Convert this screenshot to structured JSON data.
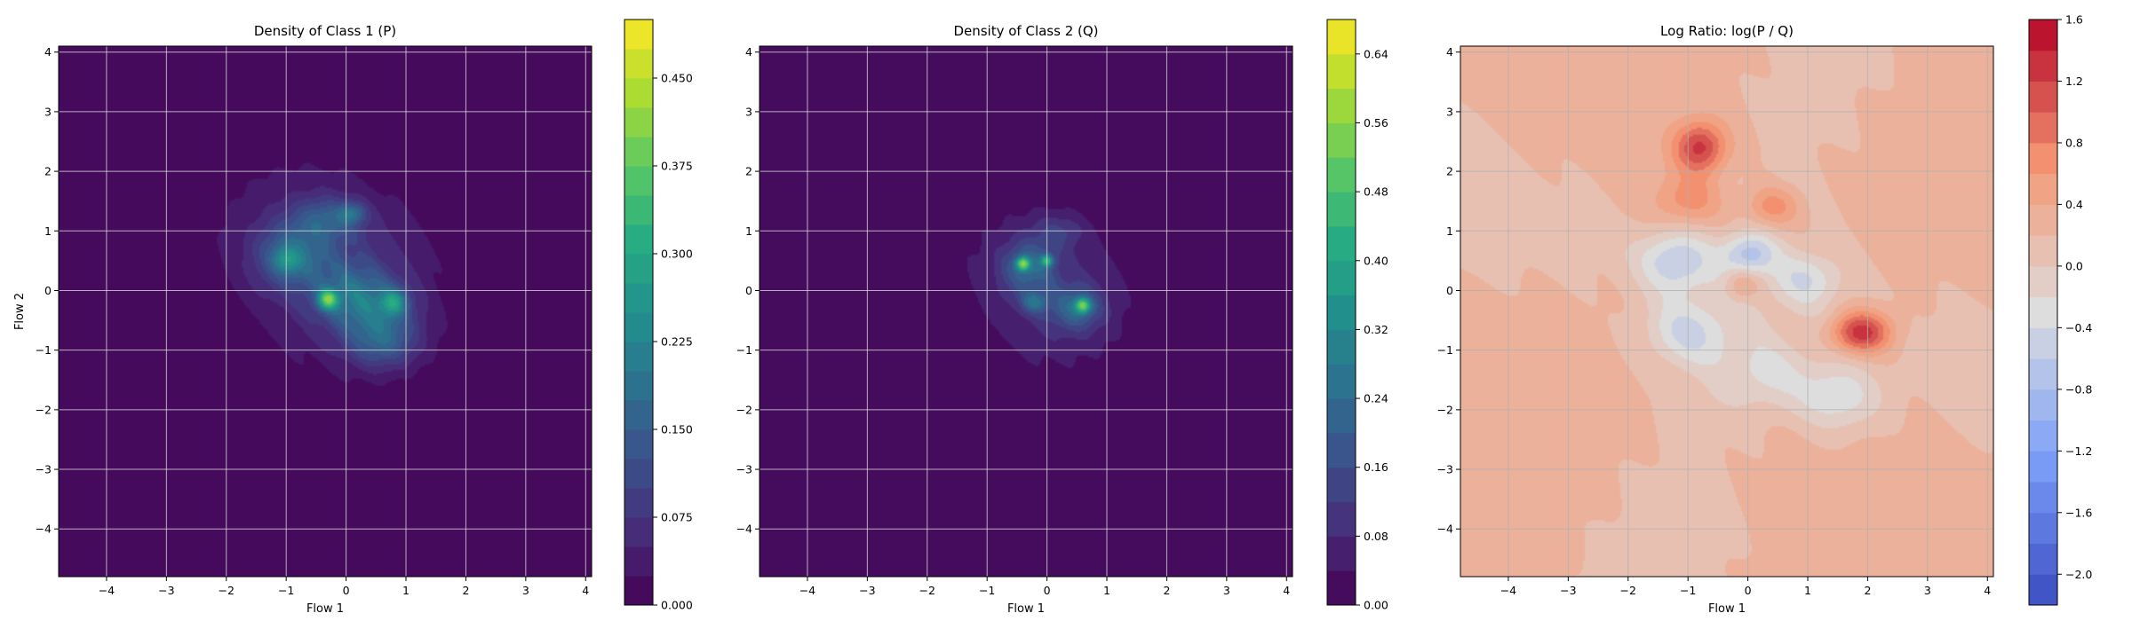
{
  "chart_data": [
    {
      "type": "heatmap",
      "title": "Density of Class 1 (P)",
      "xlabel": "Flow 1",
      "ylabel": "Flow 2",
      "xlim": [
        -4.8,
        4.1
      ],
      "ylim": [
        -4.8,
        4.1
      ],
      "xticks": [
        -4,
        -3,
        -2,
        -1,
        0,
        1,
        2,
        3,
        4
      ],
      "yticks": [
        4,
        3,
        2,
        1,
        0,
        -1,
        -2,
        -3,
        -4
      ],
      "colormap": "viridis",
      "colorbar": {
        "min": 0.0,
        "max": 0.5,
        "levels": 20,
        "ticks": [
          0.0,
          0.075,
          0.15,
          0.225,
          0.3,
          0.375,
          0.45
        ],
        "tick_labels": [
          "0.000",
          "0.075",
          "0.150",
          "0.225",
          "0.300",
          "0.375",
          "0.450"
        ]
      },
      "grid": true,
      "blobs": [
        {
          "x": -0.3,
          "y": 0.4,
          "sx": 1.25,
          "sy": 1.0,
          "rot": -0.65,
          "amp": 0.08
        },
        {
          "x": 0.3,
          "y": -0.2,
          "sx": 0.55,
          "sy": 0.4,
          "rot": -0.4,
          "amp": 0.15
        },
        {
          "x": -0.9,
          "y": 0.6,
          "sx": 0.4,
          "sy": 0.35,
          "rot": 0,
          "amp": 0.12
        },
        {
          "x": -0.3,
          "y": 1.2,
          "sx": 0.4,
          "sy": 0.25,
          "rot": 0,
          "amp": 0.1
        },
        {
          "x": 0.6,
          "y": -0.9,
          "sx": 0.4,
          "sy": 0.3,
          "rot": 0,
          "amp": 0.1
        },
        {
          "x": -0.3,
          "y": -0.15,
          "sx": 0.12,
          "sy": 0.12,
          "rot": 0,
          "amp": 0.26
        },
        {
          "x": 0.8,
          "y": -0.2,
          "sx": 0.15,
          "sy": 0.15,
          "rot": 0,
          "amp": 0.16
        },
        {
          "x": 0.1,
          "y": 1.3,
          "sx": 0.15,
          "sy": 0.12,
          "rot": 0,
          "amp": 0.1
        },
        {
          "x": -1.0,
          "y": 0.5,
          "sx": 0.15,
          "sy": 0.15,
          "rot": 0,
          "amp": 0.1
        }
      ]
    },
    {
      "type": "heatmap",
      "title": "Density of Class 2 (Q)",
      "xlabel": "Flow 1",
      "ylabel": "",
      "xlim": [
        -4.8,
        4.1
      ],
      "ylim": [
        -4.8,
        4.1
      ],
      "xticks": [
        -4,
        -3,
        -2,
        -1,
        0,
        1,
        2,
        3,
        4
      ],
      "yticks": [
        4,
        3,
        2,
        1,
        0,
        -1,
        -2,
        -3,
        -4
      ],
      "colormap": "viridis",
      "colorbar": {
        "min": 0.0,
        "max": 0.68,
        "levels": 17,
        "ticks": [
          0.0,
          0.08,
          0.16,
          0.24,
          0.32,
          0.4,
          0.48,
          0.56,
          0.64
        ],
        "tick_labels": [
          "0.00",
          "0.08",
          "0.16",
          "0.24",
          "0.32",
          "0.40",
          "0.48",
          "0.56",
          "0.64"
        ]
      },
      "grid": true,
      "blobs": [
        {
          "x": 0.0,
          "y": 0.0,
          "sx": 1.0,
          "sy": 0.85,
          "rot": -0.6,
          "amp": 0.1
        },
        {
          "x": -0.3,
          "y": 0.4,
          "sx": 0.3,
          "sy": 0.3,
          "rot": 0,
          "amp": 0.16
        },
        {
          "x": 0.5,
          "y": -0.3,
          "sx": 0.3,
          "sy": 0.25,
          "rot": 0,
          "amp": 0.16
        },
        {
          "x": -0.4,
          "y": 0.45,
          "sx": 0.08,
          "sy": 0.08,
          "rot": 0,
          "amp": 0.36
        },
        {
          "x": 0.0,
          "y": 0.5,
          "sx": 0.07,
          "sy": 0.07,
          "rot": 0,
          "amp": 0.3
        },
        {
          "x": 0.6,
          "y": -0.25,
          "sx": 0.09,
          "sy": 0.09,
          "rot": 0,
          "amp": 0.34
        },
        {
          "x": -0.2,
          "y": -0.2,
          "sx": 0.15,
          "sy": 0.12,
          "rot": 0,
          "amp": 0.15
        },
        {
          "x": 0.2,
          "y": 1.0,
          "sx": 0.3,
          "sy": 0.2,
          "rot": 0,
          "amp": 0.08
        }
      ]
    },
    {
      "type": "heatmap",
      "title": "Log Ratio: log(P / Q)",
      "xlabel": "Flow 1",
      "ylabel": "",
      "xlim": [
        -4.8,
        4.1
      ],
      "ylim": [
        -4.8,
        4.1
      ],
      "xticks": [
        -4,
        -3,
        -2,
        -1,
        0,
        1,
        2,
        3,
        4
      ],
      "yticks": [
        4,
        3,
        2,
        1,
        0,
        -1,
        -2,
        -3,
        -4
      ],
      "colormap": "coolwarm",
      "colorbar": {
        "min": -2.2,
        "max": 1.6,
        "levels": 19,
        "ticks": [
          -2.0,
          -1.6,
          -1.2,
          -0.8,
          -0.4,
          0.0,
          0.4,
          0.8,
          1.2,
          1.6
        ],
        "tick_labels": [
          "−2.0",
          "−1.6",
          "−1.2",
          "−0.8",
          "−0.4",
          "0.0",
          "0.4",
          "0.8",
          "1.2",
          "1.6"
        ]
      },
      "grid": true,
      "blobs": [
        {
          "x": -0.8,
          "y": 2.4,
          "sx": 0.3,
          "sy": 0.3,
          "rot": 0,
          "amp": 1.0
        },
        {
          "x": 1.9,
          "y": -0.7,
          "sx": 0.35,
          "sy": 0.25,
          "rot": 0,
          "amp": 1.2
        },
        {
          "x": -1.0,
          "y": 1.5,
          "sx": 0.4,
          "sy": 0.3,
          "rot": 0,
          "amp": 0.5
        },
        {
          "x": 0.4,
          "y": 1.4,
          "sx": 0.3,
          "sy": 0.25,
          "rot": 0,
          "amp": 0.6
        },
        {
          "x": -0.1,
          "y": 0.1,
          "sx": 0.2,
          "sy": 0.2,
          "rot": 0,
          "amp": 0.5
        },
        {
          "x": -1.2,
          "y": 0.5,
          "sx": 0.4,
          "sy": 0.35,
          "rot": 0,
          "amp": -0.7
        },
        {
          "x": 0.0,
          "y": 0.6,
          "sx": 0.3,
          "sy": 0.25,
          "rot": 0,
          "amp": -0.8
        },
        {
          "x": -1.0,
          "y": -0.7,
          "sx": 0.5,
          "sy": 0.4,
          "rot": 0,
          "amp": -0.6
        },
        {
          "x": 1.5,
          "y": -1.8,
          "sx": 0.5,
          "sy": 0.4,
          "rot": 0,
          "amp": -0.6
        },
        {
          "x": 0.3,
          "y": -1.4,
          "sx": 0.5,
          "sy": 0.4,
          "rot": 0,
          "amp": -0.4
        },
        {
          "x": 1.0,
          "y": 0.2,
          "sx": 0.4,
          "sy": 0.3,
          "rot": 0,
          "amp": -0.5
        }
      ],
      "baseline": 0.2
    }
  ]
}
